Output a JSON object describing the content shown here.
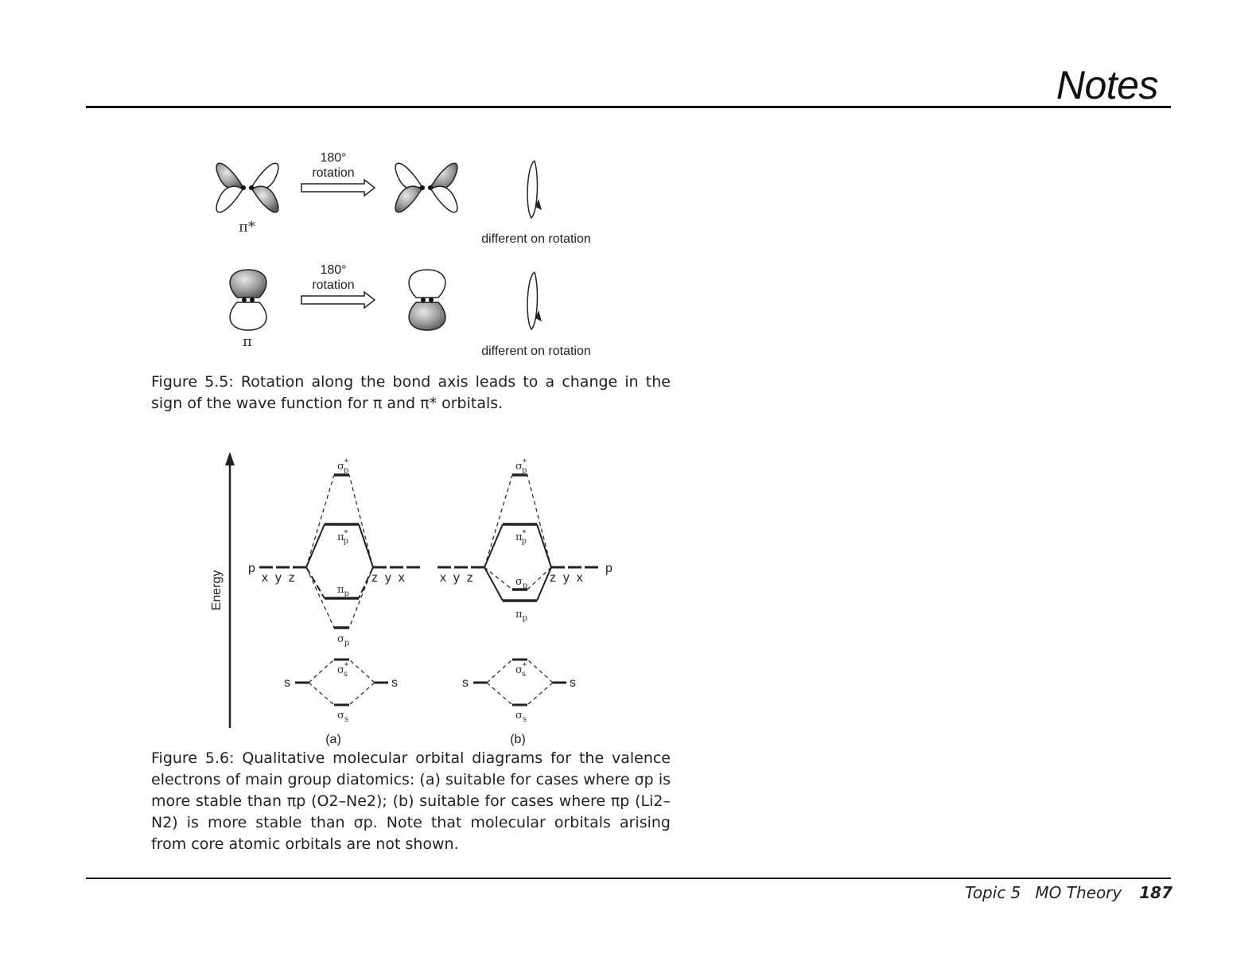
{
  "header": {
    "title": "Notes"
  },
  "figure_5_5": {
    "rotation_label_line1": "180°",
    "rotation_label_line2": "rotation",
    "rotation_label2_line1": "180°",
    "rotation_label2_line2": "rotation",
    "pi_star_label": "π*",
    "pi_label": "π",
    "different_label_1": "different on rotation",
    "different_label_2": "different on rotation",
    "caption_prefix": "Figure 5.5:",
    "caption_text": "Rotation along the bond axis leads to a change in the sign of the wave function for π and π* orbitals."
  },
  "figure_5_6": {
    "energy_axis_label": "Energy",
    "panel_a_label": "(a)",
    "panel_b_label": "(b)",
    "p_left": "p",
    "p_right": "p",
    "xyz_left_a": "x  y  z",
    "zyx_right_a": "z  y  x",
    "xyz_left_b": "x  y  z",
    "zyx_right_b": "z  y  x",
    "s_left_a": "s",
    "s_right_a": "s",
    "s_left_b": "s",
    "s_right_b": "s",
    "sigma_p_star_a": "σ",
    "pi_p_star_a": "π",
    "pi_p_a": "π",
    "sigma_p_a": "σ",
    "sigma_s_star_a": "σ",
    "sigma_s_a": "σ",
    "sigma_p_star_b": "σ",
    "pi_p_star_b": "π",
    "sigma_p_b": "σ",
    "pi_p_b": "π",
    "sigma_s_star_b": "σ",
    "sigma_s_b": "σ",
    "sub_p": "p",
    "sub_s": "s",
    "star": "*",
    "caption_prefix": "Figure 5.6:",
    "caption_text": "Qualitative molecular orbital diagrams for the valence electrons of main group diatomics: (a) suitable for cases where σp is more stable than πp (O2–Ne2); (b) suitable for cases where πp (Li2–N2) is more stable than σp. Note that molecular orbitals arising from core atomic orbitals are not shown."
  },
  "footer": {
    "topic": "Topic 5",
    "title": "MO Theory",
    "page_number": "187"
  }
}
